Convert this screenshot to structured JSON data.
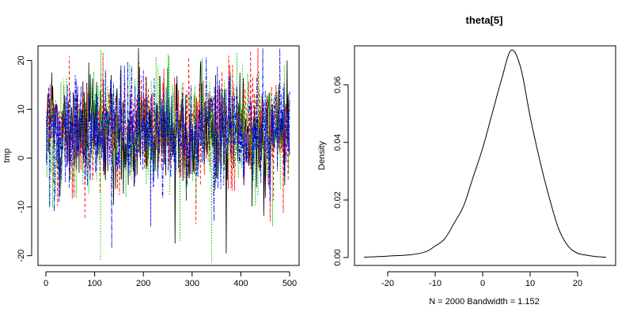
{
  "chart_data": [
    {
      "type": "line",
      "title": "",
      "xlabel": "",
      "ylabel": "tmp",
      "xlim": [
        0,
        500
      ],
      "ylim": [
        -22,
        23
      ],
      "x_ticks": [
        0,
        100,
        200,
        300,
        400,
        500
      ],
      "y_ticks": [
        -20,
        -10,
        0,
        10,
        20
      ],
      "grid": false,
      "legend": "none",
      "n_points": 500,
      "series": [
        {
          "color": "#000000",
          "style": "solid",
          "mean": 5.5,
          "sd": 5.8,
          "spikes": [
            [
              12,
              17.5
            ],
            [
              190,
              22.5
            ],
            [
              265,
              -17.5
            ],
            [
              370,
              -19.5
            ],
            [
              495,
              20
            ]
          ]
        },
        {
          "color": "#ff0000",
          "style": "dashed",
          "mean": 5.5,
          "sd": 5.8,
          "spikes": [
            [
              80,
              -12.5
            ],
            [
              308,
              -13.5
            ],
            [
              375,
              21
            ],
            [
              420,
              22
            ],
            [
              460,
              -13
            ]
          ]
        },
        {
          "color": "#00cc00",
          "style": "dotted",
          "mean": 5.5,
          "sd": 5.8,
          "spikes": [
            [
              112,
              -21
            ],
            [
              275,
              -17
            ],
            [
              340,
              -21.5
            ],
            [
              465,
              -14
            ],
            [
              230,
              19
            ]
          ]
        },
        {
          "color": "#0000ff",
          "style": "dotdash",
          "mean": 5.5,
          "sd": 5.8,
          "spikes": [
            [
              135,
              -18.5
            ],
            [
              215,
              -14
            ],
            [
              345,
              -13
            ],
            [
              480,
              23
            ],
            [
              60,
              17
            ]
          ]
        }
      ]
    },
    {
      "type": "line",
      "title": "theta[5]",
      "xlabel": "N = 2000   Bandwidth = 1.152",
      "ylabel": "Density",
      "xlim": [
        -25,
        26
      ],
      "ylim": [
        0,
        0.073
      ],
      "x_ticks": [
        -20,
        -10,
        0,
        10,
        20
      ],
      "y_ticks": [
        0.0,
        0.02,
        0.04,
        0.06
      ],
      "y_tick_labels": [
        "0.00",
        "0.02",
        "0.04",
        "0.06"
      ],
      "grid": false,
      "legend": "none",
      "x": [
        -25,
        -20,
        -15,
        -12,
        -10,
        -8,
        -6,
        -4,
        -2,
        0,
        2,
        4,
        6,
        8,
        10,
        12,
        14,
        16,
        18,
        20,
        22,
        24,
        26
      ],
      "y": [
        0.0001,
        0.0005,
        0.001,
        0.002,
        0.004,
        0.0065,
        0.012,
        0.018,
        0.028,
        0.038,
        0.05,
        0.062,
        0.072,
        0.066,
        0.049,
        0.034,
        0.021,
        0.01,
        0.004,
        0.0015,
        0.0008,
        0.0003,
        0.0001
      ]
    }
  ]
}
